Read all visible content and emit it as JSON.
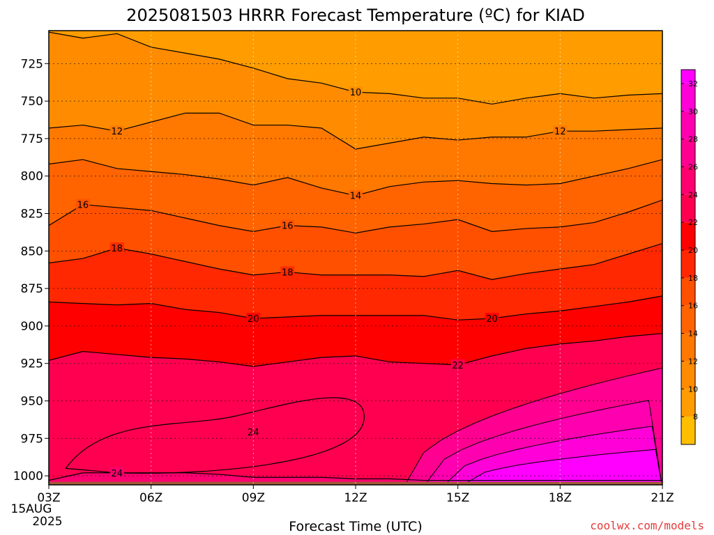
{
  "chart_data": {
    "type": "heatmap",
    "title": "2025081503 HRRR Forecast Temperature (ºC) for KIAD",
    "xlabel": "Forecast Time (UTC)",
    "ylabel": "",
    "credit": "coolwx.com/models",
    "date_line1": "15AUG",
    "date_line2": "2025",
    "x_hours": [
      3,
      4,
      5,
      6,
      7,
      8,
      9,
      10,
      11,
      12,
      13,
      14,
      15,
      16,
      17,
      18,
      19,
      20,
      21
    ],
    "x_tick_hours": [
      3,
      6,
      9,
      12,
      15,
      18,
      21
    ],
    "x_tick_labels": [
      "03Z",
      "06Z",
      "09Z",
      "12Z",
      "15Z",
      "18Z",
      "21Z"
    ],
    "y_tick_values": [
      725,
      750,
      775,
      800,
      825,
      850,
      875,
      900,
      925,
      950,
      975,
      1000
    ],
    "y_tick_labels": [
      "725",
      "750",
      "775",
      "800",
      "825",
      "850",
      "875",
      "900",
      "925",
      "950",
      "975",
      "1000"
    ],
    "ylim": [
      1006,
      703
    ],
    "ground_pressure": 1004,
    "colorbar": {
      "levels": [
        6,
        8,
        10,
        12,
        14,
        16,
        18,
        20,
        22,
        24,
        26,
        28,
        30,
        32,
        34
      ],
      "labels": [
        "8",
        "10",
        "12",
        "14",
        "16",
        "18",
        "20",
        "22",
        "24",
        "26",
        "28",
        "30",
        "32"
      ],
      "colors": [
        "#ffbe00",
        "#ff9c00",
        "#ff8c00",
        "#ff7800",
        "#ff6400",
        "#ff5000",
        "#ff2800",
        "#ff0000",
        "#ff0050",
        "#ff0070",
        "#ff0090",
        "#ff00b0",
        "#ff00d8",
        "#ff00ff"
      ]
    },
    "ground_color": "#a25a36",
    "isotherms": [
      {
        "value": 10,
        "label_hour": 12,
        "pressure": [
          704,
          708,
          705,
          714,
          718,
          722,
          728,
          735,
          738,
          744,
          745,
          748,
          748,
          752,
          748,
          745,
          748,
          746,
          745
        ]
      },
      {
        "value": 12,
        "label_hour": 5,
        "pressure": [
          768,
          766,
          770,
          764,
          758,
          758,
          766,
          766,
          768,
          782,
          778,
          774,
          776,
          774,
          774,
          770,
          770,
          769,
          768
        ]
      },
      {
        "value": 12,
        "label_hour": 18,
        "pressure": [
          768,
          766,
          770,
          764,
          758,
          758,
          766,
          766,
          768,
          782,
          778,
          774,
          776,
          774,
          774,
          770,
          770,
          769,
          768
        ]
      },
      {
        "value": 14,
        "label_hour": 12,
        "pressure": [
          792,
          789,
          795,
          797,
          799,
          802,
          806,
          801,
          808,
          813,
          807,
          804,
          803,
          805,
          806,
          805,
          800,
          795,
          789
        ]
      },
      {
        "value": 16,
        "label_hour": 4,
        "pressure": [
          833,
          819,
          821,
          823,
          828,
          833,
          837,
          833,
          834,
          838,
          834,
          832,
          829,
          837,
          835,
          834,
          831,
          824,
          816
        ]
      },
      {
        "value": 16,
        "label_hour": 10,
        "pressure": [
          833,
          819,
          821,
          823,
          828,
          833,
          837,
          833,
          834,
          838,
          834,
          832,
          829,
          837,
          835,
          834,
          831,
          824,
          816
        ]
      },
      {
        "value": 18,
        "label_hour": 5,
        "pressure": [
          858,
          855,
          848,
          852,
          857,
          862,
          866,
          864,
          866,
          866,
          866,
          867,
          863,
          869,
          865,
          862,
          859,
          852,
          845
        ]
      },
      {
        "value": 18,
        "label_hour": 10,
        "pressure": [
          858,
          855,
          848,
          852,
          857,
          862,
          866,
          864,
          866,
          866,
          866,
          867,
          863,
          869,
          865,
          862,
          859,
          852,
          845
        ]
      },
      {
        "value": 20,
        "label_hour": 9,
        "pressure": [
          884,
          885,
          886,
          885,
          889,
          891,
          895,
          894,
          893,
          893,
          893,
          893,
          896,
          895,
          892,
          890,
          887,
          884,
          880
        ]
      },
      {
        "value": 20,
        "label_hour": 16,
        "pressure": [
          884,
          885,
          886,
          885,
          889,
          891,
          895,
          894,
          893,
          893,
          893,
          893,
          896,
          895,
          892,
          890,
          887,
          884,
          880
        ]
      },
      {
        "value": 22,
        "label_hour": 15,
        "pressure": [
          923,
          917,
          919,
          921,
          922,
          924,
          927,
          924,
          921,
          920,
          924,
          925,
          926,
          920,
          915,
          912,
          910,
          907,
          905
        ]
      },
      {
        "value": 24,
        "label_hour": 5,
        "pressure": [
          1003,
          998,
          998,
          998,
          998,
          999,
          1001,
          1001,
          1001,
          1002,
          1002,
          1003,
          1003,
          1003,
          1003,
          1003,
          1003,
          1003,
          1003
        ]
      }
    ]
  }
}
